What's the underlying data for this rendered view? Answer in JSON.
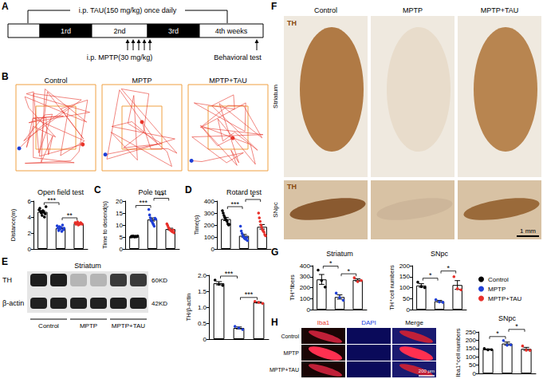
{
  "panel_labels": [
    "A",
    "B",
    "C",
    "D",
    "E",
    "F",
    "G",
    "H"
  ],
  "timeline": {
    "treatment": "i.p. TAU(150 mg/kg) once daily",
    "weeks": [
      "1rd",
      "2nd",
      "3rd",
      "4th weeks"
    ],
    "injection": "i.p. MPTP(30 mg/kg)",
    "test": "Behavioral test"
  },
  "trajectories": {
    "titles": [
      "Control",
      "MPTP",
      "MPTP+TAU"
    ]
  },
  "western_blot": {
    "region": "Striatum",
    "bands": [
      {
        "label": "TH",
        "size": "60KD"
      },
      {
        "label": "β-actin",
        "size": "42KD"
      }
    ],
    "lanes": [
      "Control",
      "MPTP",
      "MPTP+TAU"
    ]
  },
  "ihc": {
    "columns": [
      "Control",
      "MPTP",
      "MPTP+TAU"
    ],
    "rows": [
      "Striatum",
      "SNpc"
    ],
    "stain": "TH",
    "scale_bar": "1 mm"
  },
  "immunofluorescence": {
    "columns": [
      "Iba1",
      "DAPI",
      "Merge"
    ],
    "rows": [
      "Control",
      "MPTP",
      "MPTP+TAU"
    ],
    "scale_bar": "200 μm"
  },
  "chart_data": [
    {
      "type": "bar",
      "title": "Open field test",
      "ylabel": "Distance(m)",
      "categories": [
        "Control",
        "MPTP",
        "MPTP+TAU"
      ],
      "values": [
        4.65,
        2.6,
        3.2
      ],
      "errors": [
        0.13,
        0.08,
        0.04
      ],
      "points": [
        [
          4.9,
          5.1,
          4.7,
          4.5,
          4.2,
          4.8,
          4.6,
          4.0,
          4.4,
          5.3
        ],
        [
          2.9,
          2.6,
          2.3,
          2.8,
          2.5,
          2.7,
          2.2,
          3.0,
          2.4,
          2.6
        ],
        [
          3.3,
          3.1,
          3.2,
          3.4,
          3.0,
          3.2,
          3.1,
          3.3,
          3.2,
          3.1
        ]
      ],
      "colors": [
        "#000000",
        "#1f3fd6",
        "#e8302a"
      ],
      "significance": [
        {
          "from": 0,
          "to": 1,
          "label": "***"
        },
        {
          "from": 1,
          "to": 2,
          "label": "**"
        }
      ],
      "ylim": [
        0,
        6
      ],
      "yticks": [
        0,
        2,
        4,
        6
      ],
      "grid": false,
      "tick_labels": "y"
    },
    {
      "type": "bar",
      "title": "Pole test",
      "ylabel": "Time to desend(s)",
      "categories": [
        "Control",
        "MPTP",
        "MPTP+TAU"
      ],
      "values": [
        5.2,
        12.3,
        8.3
      ],
      "errors": [
        0.05,
        0.65,
        0.35
      ],
      "points": [
        [
          5.0,
          5.3,
          5.1,
          5.4,
          5.2,
          5.0,
          5.3,
          5.1,
          5.2,
          5.4
        ],
        [
          16.5,
          14.2,
          13.0,
          12.1,
          11.5,
          10.8,
          10.2,
          9.5,
          12.8,
          12.4
        ],
        [
          10.5,
          9.8,
          9.0,
          8.5,
          8.0,
          7.8,
          7.5,
          7.2,
          7.9,
          6.8
        ]
      ],
      "colors": [
        "#000000",
        "#1f3fd6",
        "#e8302a"
      ],
      "significance": [
        {
          "from": 0,
          "to": 1,
          "label": "***"
        },
        {
          "from": 1,
          "to": 2,
          "label": "**"
        }
      ],
      "ylim": [
        0,
        20
      ],
      "yticks": [
        0,
        5,
        10,
        15,
        20
      ],
      "grid": false,
      "tick_labels": "y"
    },
    {
      "type": "bar",
      "title": "Rotard test",
      "ylabel": "Time(s)",
      "categories": [
        "Control",
        "MPTP",
        "MPTP+TAU"
      ],
      "values": [
        250,
        110,
        185
      ],
      "errors": [
        13,
        11,
        19
      ],
      "points": [
        [
          320,
          300,
          280,
          265,
          250,
          240,
          230,
          210,
          200,
          205
        ],
        [
          190,
          150,
          130,
          110,
          100,
          90,
          85,
          80,
          95,
          70
        ],
        [
          300,
          260,
          230,
          200,
          180,
          160,
          150,
          140,
          120,
          110
        ]
      ],
      "colors": [
        "#000000",
        "#1f3fd6",
        "#e8302a"
      ],
      "significance": [
        {
          "from": 0,
          "to": 1,
          "label": "***"
        },
        {
          "from": 1,
          "to": 2,
          "label": "*"
        }
      ],
      "ylim": [
        0,
        400
      ],
      "yticks": [
        0,
        100,
        200,
        300,
        400
      ],
      "grid": false,
      "tick_labels": "y"
    },
    {
      "type": "bar",
      "ylabel": "TH/β-actin",
      "categories": [
        "Control",
        "MPTP",
        "MPTP+TAU"
      ],
      "values": [
        1.75,
        0.35,
        1.15
      ],
      "errors": [
        0.05,
        0.03,
        0.02
      ],
      "points": [
        [
          1.85,
          1.72,
          1.68
        ],
        [
          0.4,
          0.35,
          0.3
        ],
        [
          1.18,
          1.15,
          1.12
        ]
      ],
      "colors": [
        "#000000",
        "#1f3fd6",
        "#e8302a"
      ],
      "significance": [
        {
          "from": 0,
          "to": 1,
          "label": "***"
        },
        {
          "from": 1,
          "to": 2,
          "label": "***"
        }
      ],
      "ylim": [
        0,
        2
      ],
      "yticks": [
        0,
        0.5,
        {
          "value": 1,
          "label": "1.0"
        },
        1.5,
        {
          "value": 2,
          "label": "2.0"
        }
      ],
      "grid": false,
      "tick_labels": "y"
    },
    {
      "type": "bar",
      "title": "Striatum",
      "ylabel": "TH⁺fibers",
      "categories": [
        "Control",
        "MPTP",
        "MPTP+TAU"
      ],
      "values": [
        275,
        115,
        270
      ],
      "errors": [
        45,
        19,
        10
      ],
      "points": [
        [
          360,
          265,
          205
        ],
        [
          150,
          110,
          85
        ],
        [
          290,
          255,
          265
        ]
      ],
      "colors": [
        "#000000",
        "#1f3fd6",
        "#e8302a"
      ],
      "significance": [
        {
          "from": 0,
          "to": 1,
          "label": "*"
        },
        {
          "from": 1,
          "to": 2,
          "label": "*"
        }
      ],
      "ylim": [
        0,
        400
      ],
      "yticks": [
        0,
        100,
        200,
        300,
        400
      ],
      "grid": false,
      "tick_labels": "y"
    },
    {
      "type": "bar",
      "title": "SNpc",
      "ylabel": "TH⁺cell numbers",
      "categories": [
        "Control",
        "MPTP",
        "MPTP+TAU"
      ],
      "values": [
        110,
        38,
        112
      ],
      "errors": [
        8,
        4,
        20
      ],
      "points": [
        [
          125,
          105,
          100
        ],
        [
          45,
          35,
          33
        ],
        [
          150,
          95,
          90
        ]
      ],
      "colors": [
        "#000000",
        "#1f3fd6",
        "#e8302a"
      ],
      "significance": [
        {
          "from": 0,
          "to": 1,
          "label": "*"
        },
        {
          "from": 1,
          "to": 2,
          "label": "*"
        }
      ],
      "ylim": [
        0,
        200
      ],
      "yticks": [
        0,
        50,
        100,
        150,
        200
      ],
      "grid": false,
      "tick_labels": "y",
      "legend": "right"
    },
    {
      "type": "bar",
      "title": "SNpc",
      "ylabel": "Iba1⁺cell numbers",
      "categories": [
        "Control",
        "MPTP",
        "MPTP+TAU"
      ],
      "values": [
        145,
        180,
        148
      ],
      "errors": [
        3,
        9,
        9
      ],
      "points": [
        [
          150,
          142,
          143
        ],
        [
          198,
          170,
          172
        ],
        [
          165,
          140,
          139
        ]
      ],
      "colors": [
        "#000000",
        "#1f3fd6",
        "#e8302a"
      ],
      "significance": [
        {
          "from": 0,
          "to": 1,
          "label": "*"
        },
        {
          "from": 1,
          "to": 2,
          "label": "*"
        }
      ],
      "ylim": [
        0,
        250
      ],
      "yticks": [
        0,
        50,
        100,
        150,
        200,
        250
      ],
      "grid": false,
      "tick_labels": "y"
    }
  ]
}
